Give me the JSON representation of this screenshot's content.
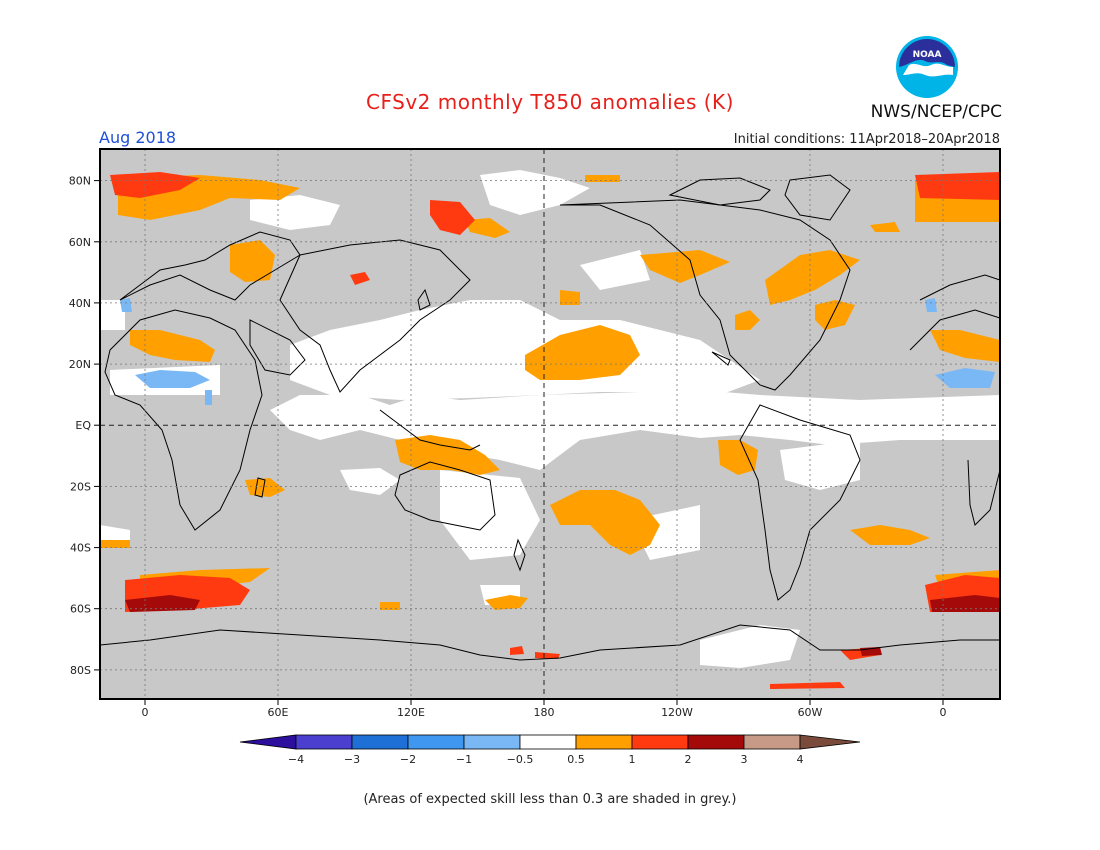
{
  "title": "CFSv2 monthly T850 anomalies (K)",
  "agency": "NWS/NCEP/CPC",
  "logo_text": "NOAA",
  "valid_month": "Aug 2018",
  "initial_conditions": "Initial conditions: 11Apr2018–20Apr2018",
  "footnote": "(Areas of expected skill less than 0.3 are shaded in grey.)",
  "axes": {
    "lat_labels": [
      "80N",
      "60N",
      "40N",
      "20N",
      "EQ",
      "20S",
      "40S",
      "60S",
      "80S"
    ],
    "lon_labels": [
      "0",
      "60E",
      "120E",
      "180",
      "120W",
      "60W",
      "0"
    ]
  },
  "colorbar": {
    "labels": [
      "−4",
      "−3",
      "−2",
      "−1",
      "−0.5",
      "0.5",
      "1",
      "2",
      "3",
      "4"
    ],
    "colors": [
      "#2c0f9c",
      "#4a3fcf",
      "#1e6fd6",
      "#3f97ef",
      "#7ab8f5",
      "#ffffff",
      "#ffa000",
      "#ff3a10",
      "#a50a0a",
      "#c79a88",
      "#7a4a3a"
    ],
    "grey_mask": "#c8c8c8"
  },
  "colors": {
    "title": "#e8201b",
    "month": "#1f4fd8",
    "ocean_background": "#ffffff",
    "low_skill": "#c8c8c8",
    "warm_1": "#ffa000",
    "warm_2": "#ff3a10",
    "warm_3": "#a50a0a"
  }
}
